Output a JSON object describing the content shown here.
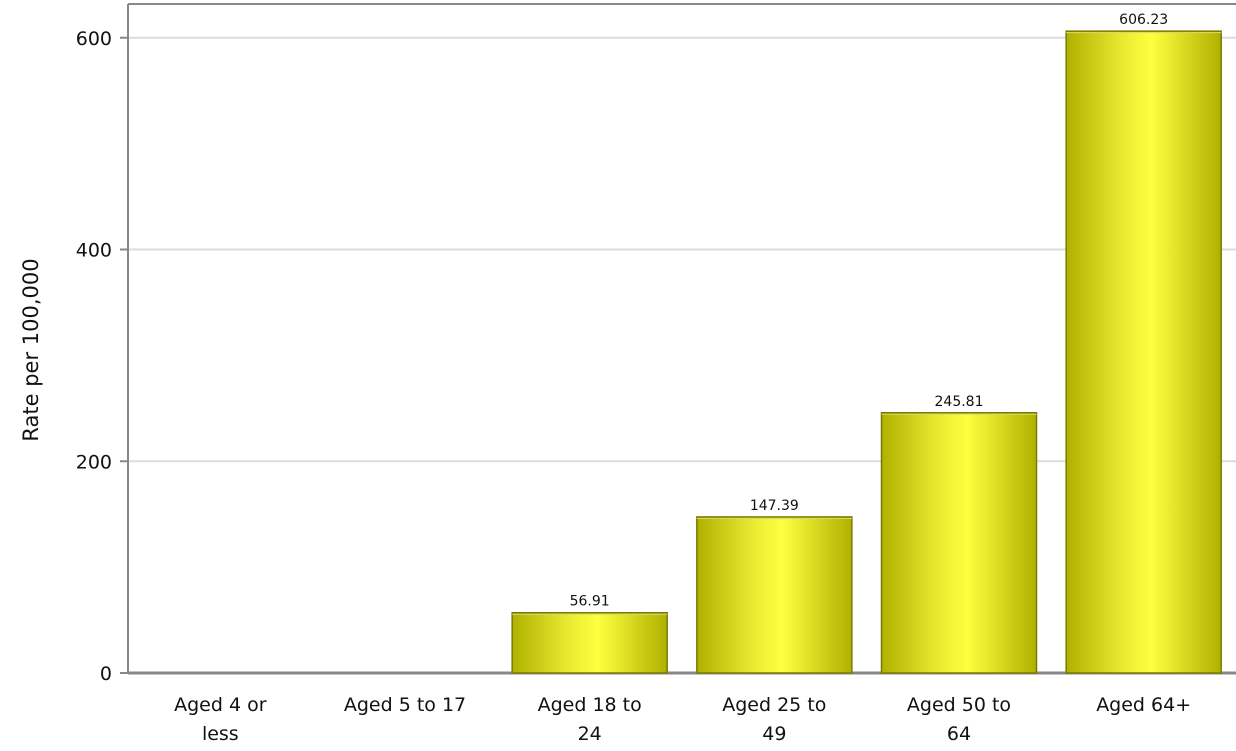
{
  "chart_data": {
    "type": "bar",
    "title": "",
    "xlabel": "",
    "ylabel": "Rate per 100,000",
    "categories": [
      [
        "Aged 4 or",
        "less"
      ],
      [
        "Aged 5 to 17"
      ],
      [
        "Aged 18 to",
        "24"
      ],
      [
        "Aged 25 to",
        "49"
      ],
      [
        "Aged 50 to",
        "64"
      ],
      [
        "Aged 64+"
      ]
    ],
    "values": [
      0,
      0,
      56.91,
      147.39,
      245.81,
      606.23
    ],
    "data_labels": [
      "",
      "",
      "56.91",
      "147.39",
      "245.81",
      "606.23"
    ],
    "ylim": [
      0,
      630
    ],
    "yticks": [
      0,
      200,
      400,
      600
    ],
    "grid": true,
    "colors": {
      "bar_center": "#ffff40",
      "bar_mid": "#e8e830",
      "bar_edge": "#b0b000",
      "bar_stroke": "#7a7a00",
      "grid": "#dcdcdc",
      "axis": "#888888"
    }
  }
}
